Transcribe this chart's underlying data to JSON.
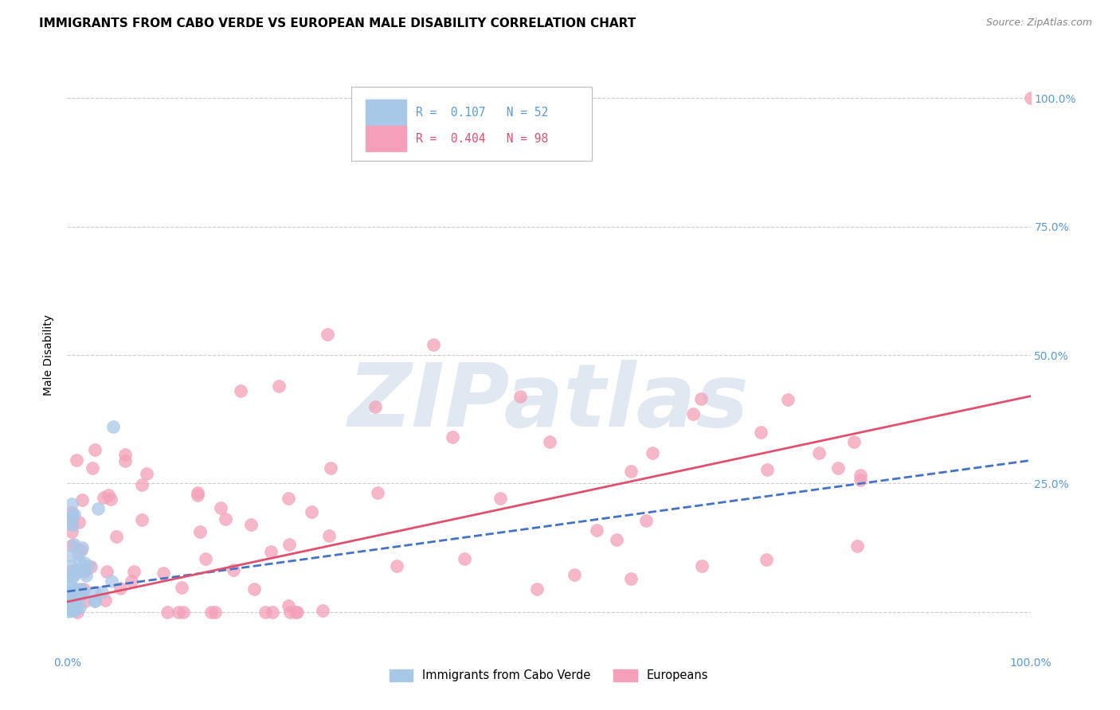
{
  "title": "IMMIGRANTS FROM CABO VERDE VS EUROPEAN MALE DISABILITY CORRELATION CHART",
  "source": "Source: ZipAtlas.com",
  "ylabel": "Male Disability",
  "ytick_labels": [
    "",
    "25.0%",
    "50.0%",
    "75.0%",
    "100.0%"
  ],
  "ytick_values": [
    0.0,
    0.25,
    0.5,
    0.75,
    1.0
  ],
  "xtick_labels": [
    "0.0%",
    "",
    "",
    "",
    "100.0%"
  ],
  "xtick_values": [
    0.0,
    0.25,
    0.5,
    0.75,
    1.0
  ],
  "blue_label": "Immigrants from Cabo Verde",
  "pink_label": "Europeans",
  "blue_R": 0.107,
  "blue_N": 52,
  "pink_R": 0.404,
  "pink_N": 98,
  "blue_scatter_color": "#a8c8e8",
  "blue_line_color": "#4472c4",
  "pink_scatter_color": "#f4a0b8",
  "pink_line_color": "#e05070",
  "watermark_text": "ZIPatlas",
  "watermark_color": "#c8d8e8",
  "background_color": "#ffffff",
  "grid_color": "#cccccc",
  "axis_tick_color": "#5b9bd5",
  "title_fontsize": 11,
  "ylabel_fontsize": 10,
  "tick_fontsize": 10,
  "source_fontsize": 9,
  "xlim": [
    0.0,
    1.0
  ],
  "ylim": [
    -0.08,
    1.08
  ],
  "blue_trend_start_y": 0.04,
  "blue_trend_end_y": 0.295,
  "pink_trend_start_y": 0.02,
  "pink_trend_end_y": 0.42
}
